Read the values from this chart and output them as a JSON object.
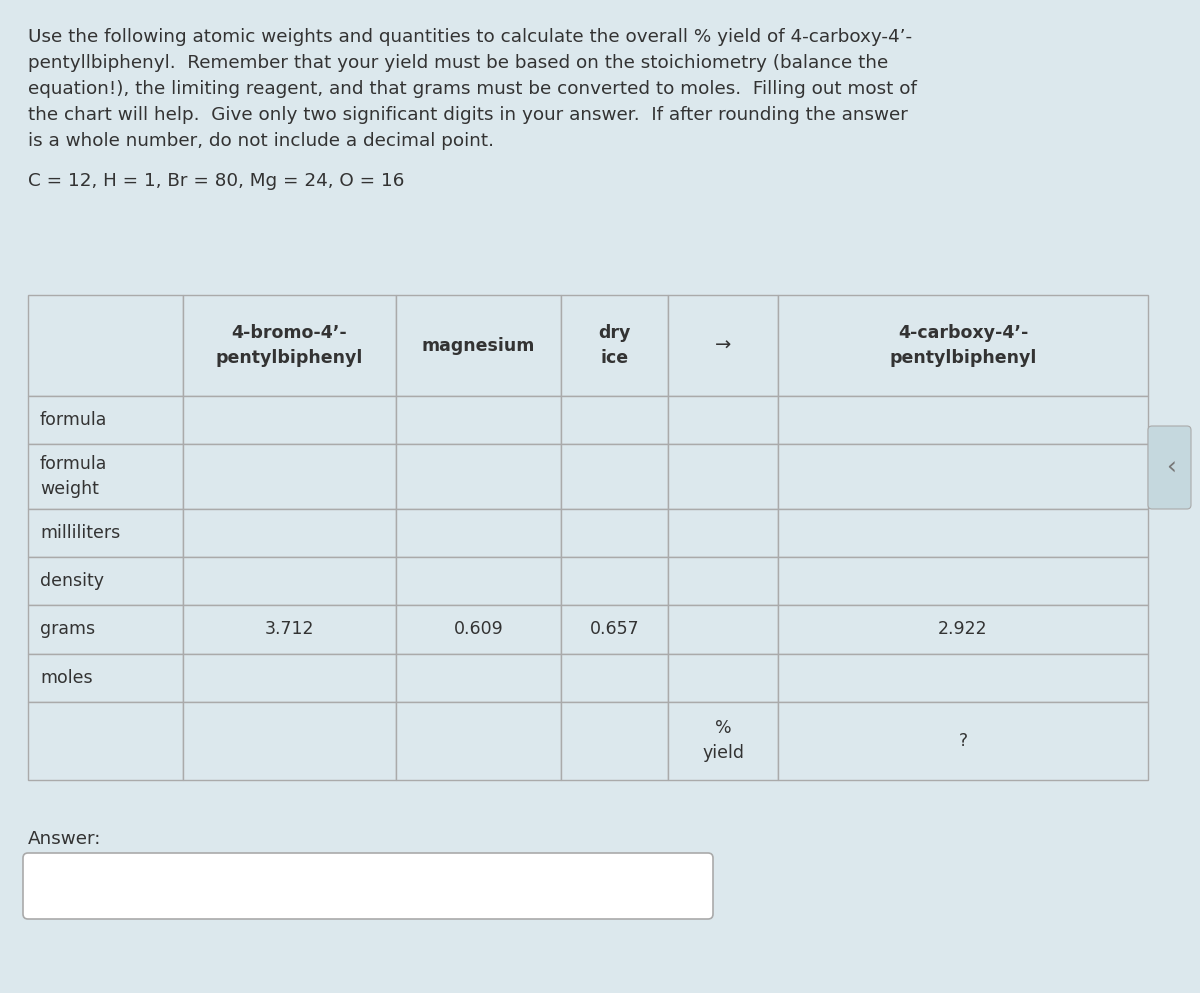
{
  "background_color": "#dce8ed",
  "title_lines": [
    "Use the following atomic weights and quantities to calculate the overall % yield of 4-carboxy-4’-",
    "pentyllbiphenyl.  Remember that your yield must be based on the stoichiometry (balance the",
    "equation!), the limiting reagent, and that grams must be converted to moles.  Filling out most of",
    "the chart will help.  Give only two significant digits in your answer.  If after rounding the answer",
    "is a whole number, do not include a decimal point."
  ],
  "atomic_weights_text": "C = 12, H = 1, Br = 80, Mg = 24, O = 16",
  "col_headers": [
    "",
    "4-bromo-4’-\npentylbiphenyl",
    "magnesium",
    "dry\nice",
    "→",
    "4-carboxy-4’-\npentylbiphenyl"
  ],
  "row_labels": [
    "formula",
    "formula\nweight",
    "milliliters",
    "density",
    "grams",
    "moles",
    ""
  ],
  "grams_vals": [
    "",
    "3.712",
    "0.609",
    "0.657",
    "",
    "2.922"
  ],
  "last_row_col4": "%\nyield",
  "last_row_col5": "?",
  "answer_label": "Answer:",
  "border_color": "#aaaaaa",
  "text_color": "#333333",
  "cell_bg": "#dce8ed",
  "answer_box_bg": "#ffffff",
  "answer_box_border": "#aaaaaa",
  "tab_color": "#c5d8de"
}
